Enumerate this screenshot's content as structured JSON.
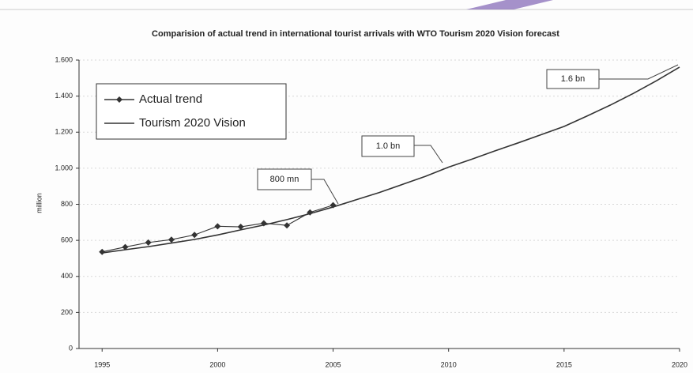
{
  "chart_data": {
    "type": "line",
    "title": "Comparision of actual trend in international tourist arrivals with WTO Tourism 2020 Vision forecast",
    "y_label": "million",
    "x": [
      1995,
      1996,
      1997,
      1998,
      1999,
      2000,
      2001,
      2002,
      2003,
      2004,
      2005,
      2006,
      2007,
      2008,
      2009,
      2010,
      2011,
      2012,
      2013,
      2014,
      2015,
      2016,
      2017,
      2018,
      2019,
      2020
    ],
    "series": [
      {
        "name": "Actual trend",
        "color": "#333333",
        "marker": "diamond",
        "values": [
          536,
          563,
          588,
          604,
          630,
          678,
          675,
          695,
          683,
          755,
          795,
          null,
          null,
          null,
          null,
          null,
          null,
          null,
          null,
          null,
          null,
          null,
          null,
          null,
          null,
          null
        ]
      },
      {
        "name": "Tourism 2020 Vision",
        "color": "#333333",
        "marker": "none",
        "values": [
          530,
          548,
          565,
          585,
          605,
          630,
          658,
          685,
          715,
          748,
          785,
          825,
          865,
          910,
          955,
          1006,
          1050,
          1096,
          1140,
          1186,
          1232,
          1290,
          1350,
          1415,
          1485,
          1561
        ]
      }
    ],
    "annotations": [
      "800 mn",
      "1.0 bn",
      "1.6 bn"
    ],
    "xlim": [
      1994,
      2020
    ],
    "xticks": [
      1995,
      2000,
      2005,
      2010,
      2015,
      2020
    ],
    "ylim": [
      0,
      1600
    ],
    "yticks": [
      0,
      200,
      400,
      600,
      800,
      {
        "value": 1000,
        "label": "1.000"
      },
      {
        "value": 1200,
        "label": "1.200"
      },
      {
        "value": 1400,
        "label": "1.400"
      },
      {
        "value": 1600,
        "label": "1.600"
      }
    ],
    "grid": true,
    "legend": "upper-left"
  }
}
